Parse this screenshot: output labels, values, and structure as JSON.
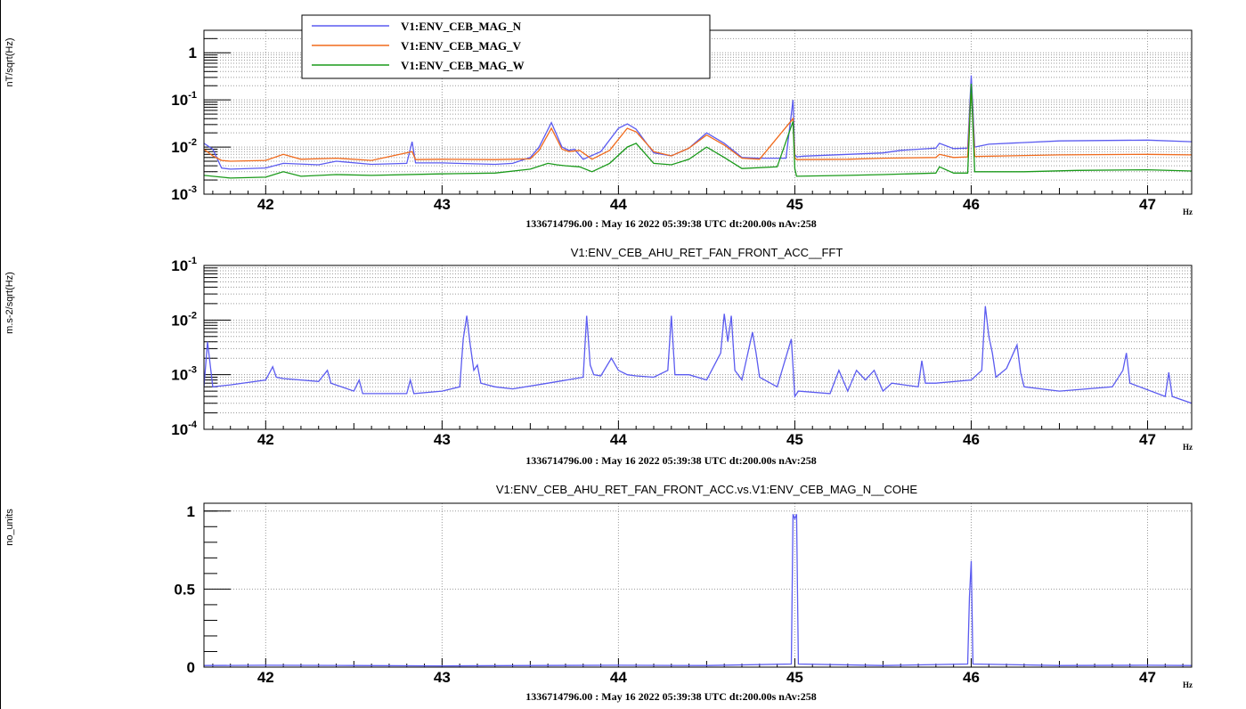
{
  "chart_data": [
    {
      "type": "line",
      "id": "magnetometers",
      "title": "",
      "ylabel": "nT/sqrt(Hz)",
      "xunit": "Hz",
      "footer": "1336714796.00 : May 16 2022 05:39:38 UTC dt:200.00s nAv:258",
      "y_scale": "log",
      "xlim": [
        41.65,
        47.25
      ],
      "ylim": [
        0.001,
        3
      ],
      "x_ticks": [
        42,
        43,
        44,
        45,
        46,
        47
      ],
      "y_ticks": [
        {
          "value": 0.001,
          "base": "10",
          "exp": "-3"
        },
        {
          "value": 0.01,
          "base": "10",
          "exp": "-2"
        },
        {
          "value": 0.1,
          "base": "10",
          "exp": "-1"
        },
        {
          "value": 1,
          "base": "1",
          "exp": ""
        }
      ],
      "legend_position": "top-left",
      "series": [
        {
          "name": "V1:ENV_CEB_MAG_N",
          "color": "#5b5bf0",
          "x": [
            41.65,
            41.7,
            41.75,
            41.8,
            42.0,
            42.1,
            42.3,
            42.4,
            42.6,
            42.8,
            42.83,
            42.85,
            43.0,
            43.3,
            43.4,
            43.5,
            43.55,
            43.62,
            43.68,
            43.72,
            43.75,
            43.8,
            43.9,
            44.0,
            44.05,
            44.1,
            44.2,
            44.3,
            44.4,
            44.5,
            44.6,
            44.7,
            44.8,
            44.95,
            44.99,
            45.0,
            45.01,
            45.05,
            45.3,
            45.5,
            45.6,
            45.8,
            45.82,
            45.9,
            45.98,
            46.0,
            46.02,
            46.1,
            46.5,
            47.0,
            47.25
          ],
          "y": [
            0.012,
            0.009,
            0.0036,
            0.0034,
            0.0036,
            0.0045,
            0.0042,
            0.005,
            0.0043,
            0.0045,
            0.013,
            0.0046,
            0.0046,
            0.0043,
            0.0045,
            0.006,
            0.01,
            0.033,
            0.01,
            0.0085,
            0.009,
            0.0055,
            0.008,
            0.025,
            0.031,
            0.024,
            0.0075,
            0.0065,
            0.0095,
            0.02,
            0.012,
            0.006,
            0.0058,
            0.0058,
            0.1,
            0.007,
            0.0062,
            0.0064,
            0.007,
            0.0075,
            0.0085,
            0.0095,
            0.012,
            0.0093,
            0.0095,
            0.33,
            0.01,
            0.0115,
            0.0135,
            0.014,
            0.013
          ]
        },
        {
          "name": "V1:ENV_CEB_MAG_V",
          "color": "#f06a1c",
          "x": [
            41.65,
            41.7,
            41.75,
            41.8,
            42.0,
            42.1,
            42.2,
            42.4,
            42.6,
            42.83,
            42.85,
            43.0,
            43.3,
            43.5,
            43.55,
            43.62,
            43.68,
            43.72,
            43.78,
            43.85,
            43.95,
            44.05,
            44.1,
            44.2,
            44.3,
            44.4,
            44.5,
            44.6,
            44.7,
            44.8,
            44.99,
            45.0,
            45.01,
            45.3,
            45.5,
            45.8,
            45.82,
            45.9,
            45.98,
            46.0,
            46.02,
            46.5,
            47.0,
            47.25
          ],
          "y": [
            0.009,
            0.0065,
            0.0052,
            0.005,
            0.0052,
            0.007,
            0.0055,
            0.0058,
            0.0052,
            0.008,
            0.0054,
            0.0055,
            0.0054,
            0.0056,
            0.0085,
            0.025,
            0.009,
            0.008,
            0.0085,
            0.0055,
            0.0085,
            0.025,
            0.021,
            0.008,
            0.0065,
            0.0095,
            0.018,
            0.011,
            0.0058,
            0.0055,
            0.04,
            0.006,
            0.0054,
            0.0055,
            0.0058,
            0.006,
            0.007,
            0.006,
            0.0062,
            0.2,
            0.0063,
            0.0068,
            0.007,
            0.0068
          ]
        },
        {
          "name": "V1:ENV_CEB_MAG_W",
          "color": "#1a9a1a",
          "x": [
            41.65,
            41.8,
            42.0,
            42.1,
            42.2,
            42.4,
            42.6,
            43.0,
            43.3,
            43.5,
            43.6,
            43.65,
            43.7,
            43.78,
            43.85,
            43.95,
            44.05,
            44.1,
            44.2,
            44.3,
            44.4,
            44.5,
            44.6,
            44.7,
            44.9,
            44.99,
            45.0,
            45.01,
            45.3,
            45.5,
            45.8,
            45.82,
            45.9,
            45.98,
            46.0,
            46.02,
            46.3,
            46.6,
            47.0,
            47.25
          ],
          "y": [
            0.0025,
            0.0022,
            0.0023,
            0.003,
            0.0024,
            0.0026,
            0.0025,
            0.0027,
            0.0028,
            0.0034,
            0.0045,
            0.0042,
            0.004,
            0.0038,
            0.003,
            0.0045,
            0.01,
            0.012,
            0.0045,
            0.0042,
            0.0055,
            0.01,
            0.006,
            0.0035,
            0.0038,
            0.035,
            0.0035,
            0.0024,
            0.0025,
            0.0026,
            0.0028,
            0.0038,
            0.0028,
            0.0028,
            0.22,
            0.003,
            0.003,
            0.0032,
            0.0033,
            0.0031
          ]
        }
      ]
    },
    {
      "type": "line",
      "id": "accelerometer",
      "title": "V1:ENV_CEB_AHU_RET_FAN_FRONT_ACC__FFT",
      "ylabel": "m.s-2/sqrt(Hz)",
      "xunit": "Hz",
      "footer": "1336714796.00 : May 16 2022 05:39:38 UTC dt:200.00s nAv:258",
      "y_scale": "log",
      "xlim": [
        41.65,
        47.25
      ],
      "ylim": [
        0.0001,
        0.1
      ],
      "x_ticks": [
        42,
        43,
        44,
        45,
        46,
        47
      ],
      "y_ticks": [
        {
          "value": 0.0001,
          "base": "10",
          "exp": "-4"
        },
        {
          "value": 0.001,
          "base": "10",
          "exp": "-3"
        },
        {
          "value": 0.01,
          "base": "10",
          "exp": "-2"
        },
        {
          "value": 0.1,
          "base": "10",
          "exp": "-1"
        }
      ],
      "series": [
        {
          "name": "",
          "color": "#5b5bf0",
          "x": [
            41.65,
            41.67,
            41.7,
            41.8,
            42.0,
            42.04,
            42.06,
            42.1,
            42.3,
            42.35,
            42.37,
            42.5,
            42.53,
            42.55,
            42.8,
            42.82,
            42.84,
            43.0,
            43.1,
            43.12,
            43.14,
            43.16,
            43.18,
            43.2,
            43.22,
            43.3,
            43.4,
            43.6,
            43.8,
            43.82,
            43.84,
            43.86,
            43.9,
            43.96,
            44.0,
            44.05,
            44.1,
            44.2,
            44.28,
            44.3,
            44.32,
            44.4,
            44.5,
            44.58,
            44.6,
            44.62,
            44.64,
            44.66,
            44.7,
            44.76,
            44.78,
            44.8,
            44.9,
            44.98,
            45.0,
            45.02,
            45.2,
            45.25,
            45.3,
            45.35,
            45.4,
            45.45,
            45.5,
            45.55,
            45.7,
            45.72,
            45.74,
            45.8,
            46.0,
            46.06,
            46.08,
            46.1,
            46.12,
            46.14,
            46.2,
            46.26,
            46.28,
            46.3,
            46.5,
            46.8,
            46.86,
            46.88,
            46.9,
            47.1,
            47.12,
            47.14,
            47.25
          ],
          "y": [
            0.0006,
            0.004,
            0.0006,
            0.00065,
            0.0008,
            0.0014,
            0.0009,
            0.00085,
            0.00075,
            0.0012,
            0.0007,
            0.0005,
            0.0008,
            0.00045,
            0.00045,
            0.0008,
            0.00045,
            0.0005,
            0.0006,
            0.0045,
            0.012,
            0.0035,
            0.0012,
            0.0015,
            0.0007,
            0.0006,
            0.00055,
            0.0007,
            0.0009,
            0.012,
            0.0015,
            0.001,
            0.00095,
            0.002,
            0.0012,
            0.001,
            0.00095,
            0.0009,
            0.0012,
            0.012,
            0.001,
            0.001,
            0.0008,
            0.0025,
            0.013,
            0.004,
            0.012,
            0.0012,
            0.0008,
            0.006,
            0.0025,
            0.0009,
            0.0006,
            0.0045,
            0.0004,
            0.0005,
            0.00045,
            0.0012,
            0.0005,
            0.0012,
            0.0008,
            0.0012,
            0.0005,
            0.0007,
            0.0006,
            0.0018,
            0.0007,
            0.0007,
            0.0008,
            0.0012,
            0.018,
            0.005,
            0.0025,
            0.0009,
            0.0013,
            0.0035,
            0.0011,
            0.0006,
            0.0005,
            0.0006,
            0.0012,
            0.0025,
            0.0007,
            0.0004,
            0.0011,
            0.0004,
            0.0003
          ]
        }
      ]
    },
    {
      "type": "line",
      "id": "coherence",
      "title": "V1:ENV_CEB_AHU_RET_FAN_FRONT_ACC.vs.V1:ENV_CEB_MAG_N__COHE",
      "ylabel": "no_units",
      "xunit": "Hz",
      "footer": "1336714796.00 : May 16 2022 05:39:38 UTC dt:200.00s nAv:258",
      "y_scale": "linear",
      "xlim": [
        41.65,
        47.25
      ],
      "ylim": [
        0,
        1.05
      ],
      "x_ticks": [
        42,
        43,
        44,
        45,
        46,
        47
      ],
      "y_ticks": [
        {
          "value": 0,
          "label": "0"
        },
        {
          "value": 0.5,
          "label": "0.5"
        },
        {
          "value": 1,
          "label": "1"
        }
      ],
      "series": [
        {
          "name": "",
          "color": "#5b5bf0",
          "x": [
            41.65,
            42.0,
            42.5,
            43.0,
            43.5,
            44.0,
            44.5,
            44.98,
            44.99,
            45.0,
            45.01,
            45.02,
            45.5,
            45.98,
            45.99,
            46.0,
            46.01,
            46.5,
            47.0,
            47.25
          ],
          "y": [
            0.01,
            0.012,
            0.01,
            0.008,
            0.01,
            0.012,
            0.01,
            0.02,
            0.98,
            0.95,
            0.98,
            0.02,
            0.01,
            0.02,
            0.45,
            0.68,
            0.02,
            0.01,
            0.012,
            0.01
          ]
        }
      ]
    }
  ]
}
